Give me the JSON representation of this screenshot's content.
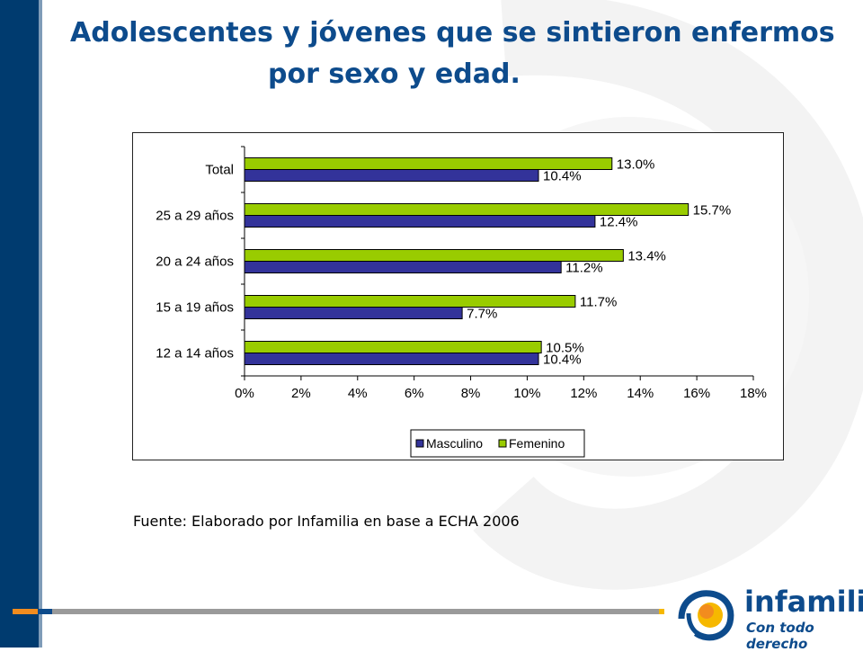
{
  "header": {
    "title_line1": "Adolescentes y jóvenes que se sintieron enfermos",
    "title_line2": "por sexo y edad."
  },
  "chart_data": {
    "type": "bar",
    "orientation": "horizontal",
    "categories": [
      "Total",
      "25 a 29 años",
      "20 a 24 años",
      "15 a 19 años",
      "12 a 14 años"
    ],
    "series": [
      {
        "name": "Masculino",
        "values": [
          10.4,
          12.4,
          11.2,
          7.7,
          10.4
        ],
        "labels": [
          "10.4%",
          "12.4%",
          "11.2%",
          "7.7%",
          "10.4%"
        ],
        "color": "#33339a"
      },
      {
        "name": "Femenino",
        "values": [
          13.0,
          15.7,
          13.4,
          11.7,
          10.5
        ],
        "labels": [
          "13.0%",
          "15.7%",
          "13.4%",
          "11.7%",
          "10.5%"
        ],
        "color": "#99cc00"
      }
    ],
    "xlim": [
      0,
      18
    ],
    "x_ticks": [
      "0%",
      "2%",
      "4%",
      "6%",
      "8%",
      "10%",
      "12%",
      "14%",
      "16%",
      "18%"
    ],
    "legend_position": "bottom",
    "grid": false
  },
  "footer": {
    "source": "Fuente: Elaborado por Infamilia en base a ECHA 2006"
  },
  "logo": {
    "name": "infamilia",
    "tagline": "Con todo derecho"
  },
  "colors": {
    "band": "#003b6f",
    "title": "#0d4b8c",
    "accent_orange": "#f28c1e",
    "accent_yellow": "#f6b800"
  }
}
